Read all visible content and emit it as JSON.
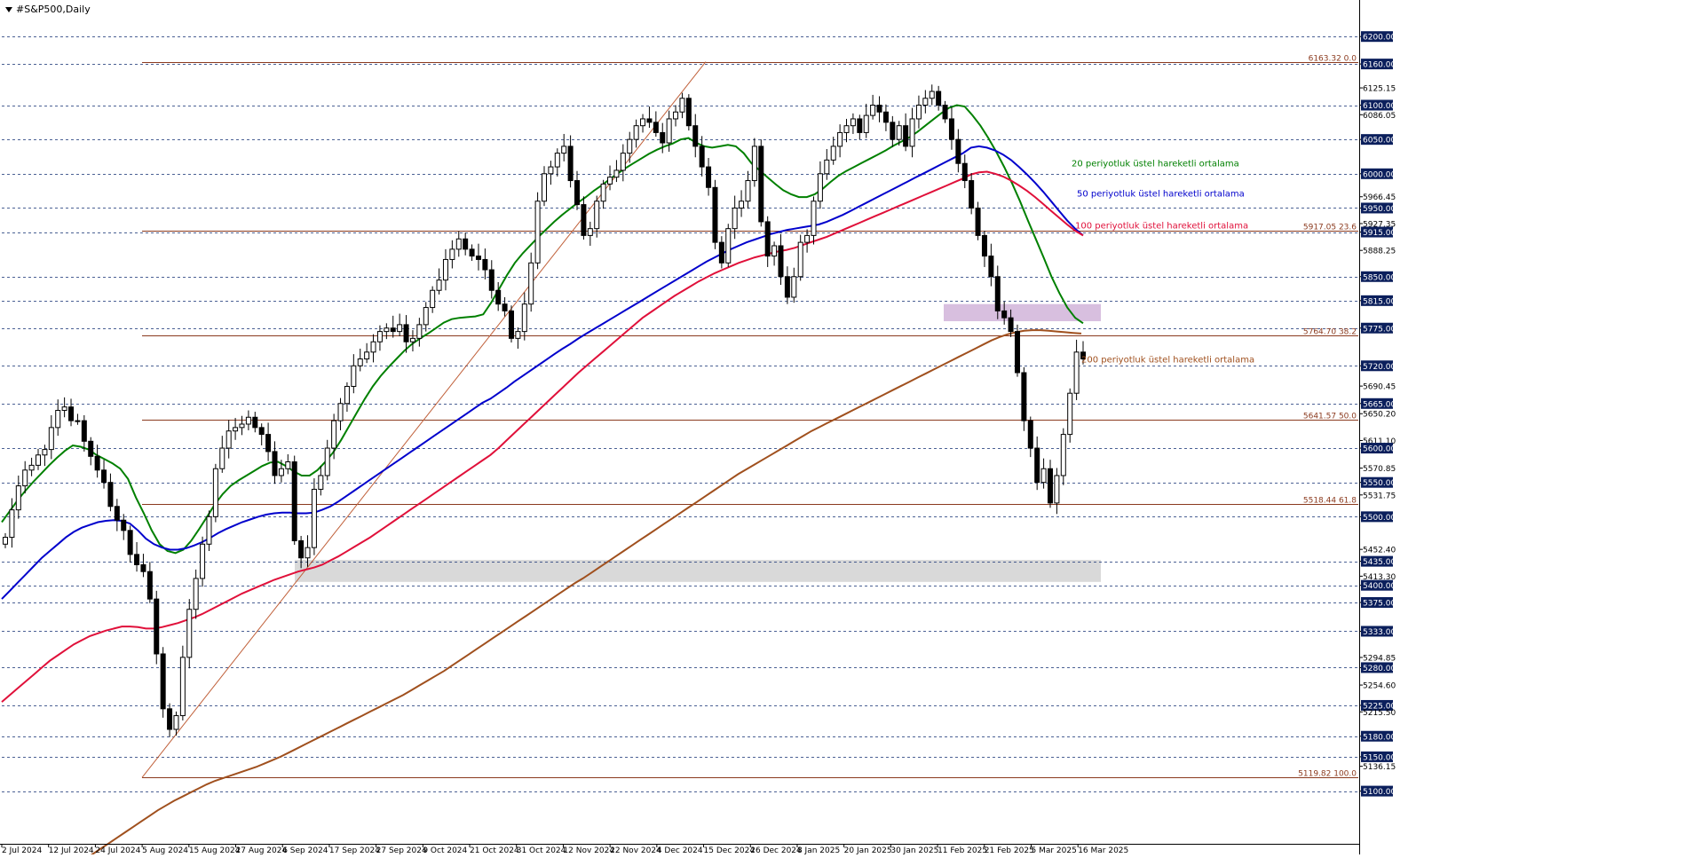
{
  "window": {
    "symbol": "#S&P500,Daily"
  },
  "chart_data": {
    "type": "candlestick",
    "symbol": "#S&P500",
    "timeframe": "Daily",
    "ylim": [
      5100,
      6200
    ],
    "price_labels": [
      "6200.00",
      "6160.00",
      "6125.15",
      "6100.00",
      "6086.05",
      "6050.00",
      "6000.00",
      "5966.45",
      "5950.00",
      "5927.35",
      "5915.00",
      "5888.25",
      "5850.00",
      "5815.00",
      "5775.00",
      "5720.00",
      "5690.45",
      "5665.00",
      "5650.20",
      "5611.10",
      "5600.00",
      "5570.85",
      "5550.00",
      "5531.75",
      "5500.00",
      "5452.40",
      "5435.00",
      "5413.30",
      "5400.00",
      "5375.00",
      "5333.00",
      "5294.85",
      "5280.00",
      "5254.60",
      "5225.00",
      "5215.50",
      "5180.00",
      "5150.00",
      "5136.15",
      "5100.00"
    ],
    "highlighted_price_labels": [
      "6200.00",
      "6160.00",
      "6100.00",
      "6050.00",
      "6000.00",
      "5950.00",
      "5915.00",
      "5850.00",
      "5815.00",
      "5775.00",
      "5720.00",
      "5665.00",
      "5600.00",
      "5550.00",
      "5500.00",
      "5435.00",
      "5400.00",
      "5375.00",
      "5333.00",
      "5280.00",
      "5225.00",
      "5180.00",
      "5150.00",
      "5100.00"
    ],
    "date_labels": [
      "2 Jul 2024",
      "12 Jul 2024",
      "24 Jul 2024",
      "5 Aug 2024",
      "15 Aug 2024",
      "27 Aug 2024",
      "6 Sep 2024",
      "17 Sep 2024",
      "27 Sep 2024",
      "9 Oct 2024",
      "21 Oct 2024",
      "31 Oct 2024",
      "12 Nov 2024",
      "22 Nov 2024",
      "4 Dec 2024",
      "15 Dec 2024",
      "26 Dec 2024",
      "8 Jan 2025",
      "20 Jan 2025",
      "30 Jan 2025",
      "11 Feb 2025",
      "21 Feb 2025",
      "5 Mar 2025",
      "16 Mar 2025"
    ],
    "fibonacci_levels": [
      {
        "label": "6163.32 0.0",
        "price": 6163.32
      },
      {
        "label": "5917.05 23.6",
        "price": 5917.05
      },
      {
        "label": "5764.70 38.2",
        "price": 5764.7
      },
      {
        "label": "5641.57 50.0",
        "price": 5641.57
      },
      {
        "label": "5518.44 61.8",
        "price": 5518.44
      },
      {
        "label": "5119.82 100.0",
        "price": 5119.82
      }
    ],
    "zones": [
      {
        "name": "resistance",
        "price_from": 5785,
        "price_to": 5810,
        "color": "#d8bfdf"
      },
      {
        "name": "support",
        "price_from": 5405,
        "price_to": 5437,
        "color": "#d9d9d9"
      }
    ],
    "indicators": [
      {
        "name": "20 periyotluk üstel hareketli ortalama",
        "color": "#008000",
        "values": [
          5492,
          5508,
          5524,
          5538,
          5551,
          5563,
          5575,
          5586,
          5596,
          5604,
          5602,
          5598,
          5590,
          5584,
          5578,
          5570,
          5555,
          5528,
          5505,
          5480,
          5460,
          5450,
          5447,
          5452,
          5465,
          5482,
          5500,
          5518,
          5533,
          5545,
          5553,
          5560,
          5567,
          5574,
          5579,
          5580,
          5574,
          5566,
          5560,
          5560,
          5568,
          5580,
          5594,
          5612,
          5632,
          5652,
          5672,
          5690,
          5705,
          5718,
          5730,
          5742,
          5752,
          5760,
          5767,
          5775,
          5783,
          5788,
          5790,
          5791,
          5792,
          5795,
          5812,
          5832,
          5852,
          5870,
          5884,
          5896,
          5908,
          5919,
          5930,
          5940,
          5949,
          5958,
          5966,
          5975,
          5983,
          5992,
          6000,
          6008,
          6015,
          6022,
          6029,
          6035,
          6040,
          6044,
          6050,
          6052,
          6045,
          6040,
          6038,
          6040,
          6042,
          6040,
          6030,
          6015,
          6005,
          5995,
          5985,
          5976,
          5970,
          5966,
          5966,
          5970,
          5978,
          5988,
          5997,
          6004,
          6010,
          6016,
          6022,
          6028,
          6034,
          6041,
          6047,
          6053,
          6061,
          6070,
          6079,
          6088,
          6096,
          6100,
          6098,
          6085,
          6070,
          6052,
          6032,
          6010,
          5986,
          5960,
          5932,
          5905,
          5878,
          5850,
          5826,
          5805,
          5790,
          5782
        ]
      },
      {
        "name": "50 periyotluk üstel hareketli ortalama",
        "color": "#0000cc",
        "values": [
          5380,
          5392,
          5404,
          5416,
          5428,
          5440,
          5450,
          5460,
          5470,
          5478,
          5484,
          5488,
          5492,
          5494,
          5495,
          5494,
          5490,
          5480,
          5468,
          5460,
          5455,
          5452,
          5452,
          5454,
          5458,
          5463,
          5469,
          5476,
          5482,
          5487,
          5492,
          5496,
          5500,
          5503,
          5505,
          5506,
          5506,
          5505,
          5505,
          5506,
          5510,
          5515,
          5522,
          5530,
          5538,
          5546,
          5554,
          5562,
          5570,
          5578,
          5586,
          5594,
          5602,
          5610,
          5618,
          5626,
          5634,
          5642,
          5650,
          5658,
          5666,
          5672,
          5680,
          5688,
          5697,
          5705,
          5713,
          5721,
          5729,
          5737,
          5745,
          5752,
          5760,
          5767,
          5774,
          5781,
          5788,
          5795,
          5802,
          5809,
          5816,
          5823,
          5830,
          5837,
          5844,
          5851,
          5858,
          5865,
          5872,
          5878,
          5884,
          5890,
          5895,
          5900,
          5904,
          5908,
          5912,
          5915,
          5918,
          5920,
          5922,
          5924,
          5926,
          5930,
          5935,
          5940,
          5946,
          5952,
          5958,
          5964,
          5970,
          5976,
          5982,
          5988,
          5994,
          6000,
          6006,
          6012,
          6018,
          6024,
          6030,
          6038,
          6040,
          6038,
          6034,
          6028,
          6020,
          6010,
          5999,
          5987,
          5974,
          5960,
          5946,
          5932,
          5920,
          5910
        ]
      },
      {
        "name": "100 periyotluk üstel hareketli ortalama",
        "color": "#e0103a",
        "values": [
          5230,
          5240,
          5250,
          5260,
          5270,
          5280,
          5290,
          5298,
          5306,
          5314,
          5320,
          5326,
          5330,
          5334,
          5337,
          5340,
          5340,
          5339,
          5337,
          5337,
          5339,
          5342,
          5345,
          5349,
          5353,
          5358,
          5364,
          5370,
          5376,
          5382,
          5388,
          5393,
          5398,
          5403,
          5408,
          5412,
          5416,
          5420,
          5423,
          5426,
          5430,
          5436,
          5442,
          5449,
          5456,
          5463,
          5470,
          5478,
          5486,
          5494,
          5502,
          5510,
          5518,
          5526,
          5534,
          5542,
          5550,
          5558,
          5566,
          5574,
          5582,
          5590,
          5600,
          5611,
          5622,
          5633,
          5644,
          5655,
          5666,
          5677,
          5688,
          5699,
          5710,
          5720,
          5730,
          5740,
          5750,
          5760,
          5770,
          5780,
          5790,
          5798,
          5806,
          5814,
          5822,
          5829,
          5836,
          5843,
          5849,
          5855,
          5860,
          5865,
          5870,
          5874,
          5878,
          5881,
          5884,
          5887,
          5889,
          5892,
          5896,
          5900,
          5904,
          5908,
          5913,
          5918,
          5923,
          5928,
          5933,
          5938,
          5943,
          5948,
          5953,
          5958,
          5963,
          5968,
          5973,
          5978,
          5983,
          5988,
          5993,
          5999,
          6002,
          6003,
          6000,
          5996,
          5990,
          5983,
          5975,
          5966,
          5956,
          5946,
          5936,
          5926,
          5917,
          5910
        ]
      },
      {
        "name": "200 periyotluk üstel hareketli ortalama",
        "color": "#a0501e",
        "values": [
          5000,
          5008,
          5016,
          5024,
          5032,
          5040,
          5048,
          5056,
          5064,
          5072,
          5079,
          5086,
          5092,
          5098,
          5104,
          5110,
          5115,
          5119,
          5123,
          5127,
          5131,
          5135,
          5140,
          5145,
          5150,
          5156,
          5162,
          5168,
          5174,
          5180,
          5186,
          5192,
          5198,
          5204,
          5210,
          5216,
          5222,
          5228,
          5234,
          5240,
          5247,
          5254,
          5261,
          5268,
          5275,
          5283,
          5291,
          5299,
          5307,
          5315,
          5323,
          5331,
          5339,
          5347,
          5355,
          5363,
          5371,
          5379,
          5387,
          5395,
          5403,
          5410,
          5418,
          5426,
          5434,
          5442,
          5450,
          5458,
          5466,
          5474,
          5482,
          5490,
          5498,
          5506,
          5514,
          5522,
          5530,
          5538,
          5546,
          5554,
          5562,
          5569,
          5576,
          5583,
          5590,
          5597,
          5604,
          5611,
          5618,
          5625,
          5631,
          5637,
          5643,
          5649,
          5655,
          5661,
          5667,
          5673,
          5679,
          5685,
          5691,
          5697,
          5703,
          5709,
          5715,
          5721,
          5727,
          5733,
          5739,
          5745,
          5751,
          5757,
          5762,
          5766,
          5769,
          5771,
          5772,
          5772,
          5771,
          5770,
          5769,
          5768,
          5767
        ]
      }
    ],
    "indicator_label_series": [
      "20 periyotluk üstel hareketli ortalama",
      "50 periyotluk üstel hareketli ortalama",
      "100 periyotluk üstel hareketli ortalama",
      "200 periyotluk üstel hareketli ortalama"
    ],
    "candles_close": [
      5470,
      5510,
      5545,
      5568,
      5575,
      5590,
      5598,
      5630,
      5655,
      5660,
      5640,
      5640,
      5610,
      5588,
      5568,
      5550,
      5515,
      5495,
      5480,
      5445,
      5430,
      5420,
      5380,
      5300,
      5220,
      5190,
      5210,
      5295,
      5365,
      5410,
      5460,
      5500,
      5570,
      5600,
      5625,
      5630,
      5635,
      5645,
      5630,
      5620,
      5595,
      5560,
      5570,
      5580,
      5465,
      5440,
      5455,
      5540,
      5560,
      5600,
      5640,
      5665,
      5690,
      5720,
      5730,
      5740,
      5755,
      5770,
      5775,
      5770,
      5780,
      5755,
      5760,
      5780,
      5805,
      5830,
      5845,
      5875,
      5890,
      5905,
      5890,
      5880,
      5875,
      5860,
      5830,
      5810,
      5800,
      5760,
      5770,
      5810,
      5870,
      5960,
      6000,
      6010,
      6030,
      6040,
      5990,
      5955,
      5910,
      5920,
      5960,
      5985,
      5995,
      6005,
      6030,
      6050,
      6070,
      6080,
      6075,
      6060,
      6045,
      6080,
      6090,
      6110,
      6070,
      6040,
      6010,
      5980,
      5900,
      5870,
      5920,
      5950,
      5960,
      5990,
      6040,
      5930,
      5880,
      5895,
      5850,
      5820,
      5850,
      5900,
      5910,
      5960,
      6000,
      6020,
      6040,
      6060,
      6070,
      6080,
      6060,
      6085,
      6100,
      6090,
      6075,
      6050,
      6070,
      6040,
      6080,
      6100,
      6110,
      6120,
      6100,
      6080,
      6050,
      6015,
      5990,
      5950,
      5910,
      5880,
      5850,
      5800,
      5790,
      5770,
      5710,
      5640,
      5600,
      5550,
      5570,
      5520,
      5560,
      5620,
      5680,
      5740,
      5730
    ]
  }
}
